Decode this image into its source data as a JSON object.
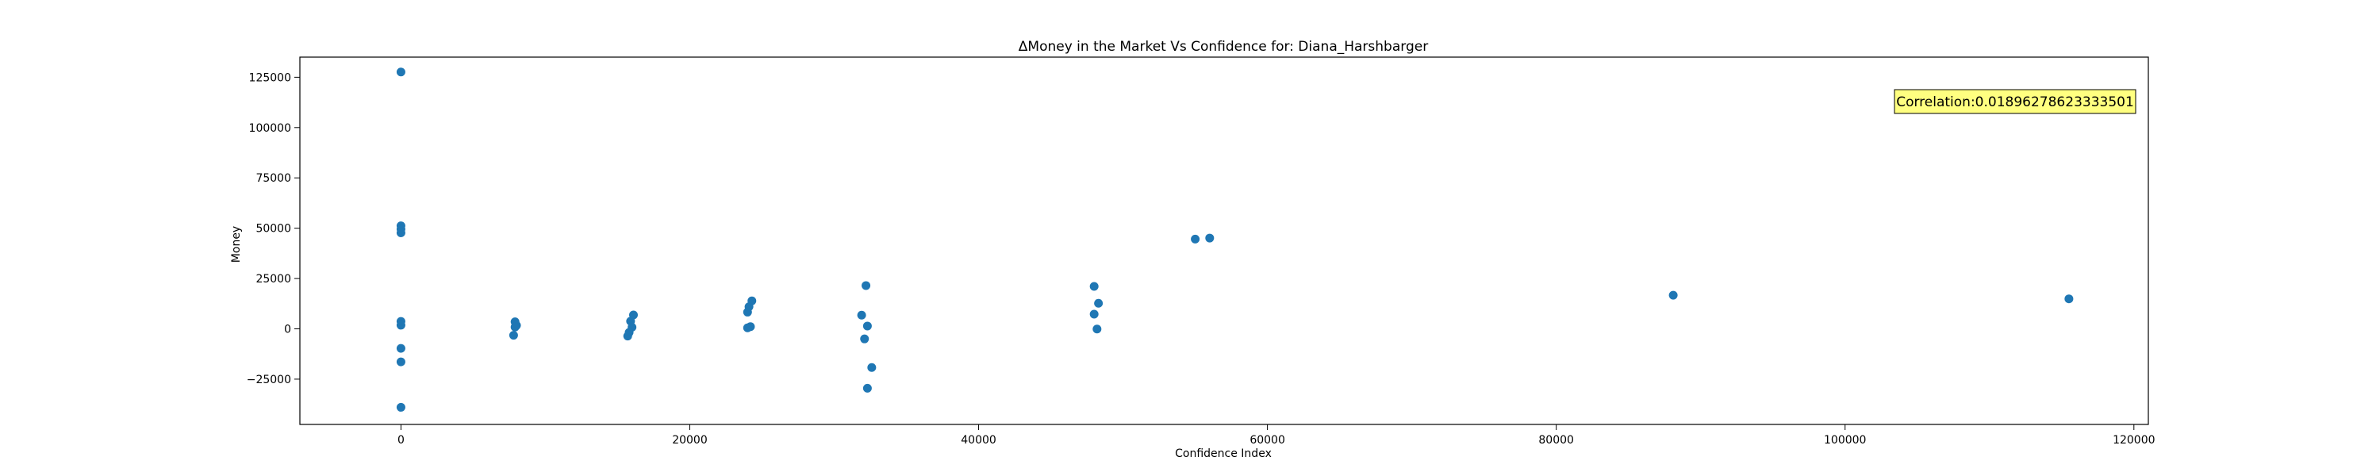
{
  "chart_data": {
    "type": "scatter",
    "title": "ΔMoney in the Market Vs Confidence for: Diana_Harshbarger",
    "xlabel": "Confidence Index",
    "ylabel": "Money",
    "xlim": [
      -7000,
      121000
    ],
    "ylim": [
      -47500,
      135000
    ],
    "xticks": [
      0,
      20000,
      40000,
      60000,
      80000,
      100000,
      120000
    ],
    "yticks": [
      -25000,
      0,
      25000,
      50000,
      75000,
      100000,
      125000
    ],
    "grid": false,
    "marker_color": "#1f77b4",
    "annotation": {
      "text": "Correlation:0.01896278623333501",
      "background": "#ffff80"
    },
    "points": [
      {
        "x": 0,
        "y": 127600
      },
      {
        "x": 0,
        "y": 51200
      },
      {
        "x": 0,
        "y": 49500
      },
      {
        "x": 0,
        "y": 47700
      },
      {
        "x": 0,
        "y": 3700
      },
      {
        "x": 0,
        "y": 1800
      },
      {
        "x": 0,
        "y": -9700
      },
      {
        "x": 0,
        "y": -16400
      },
      {
        "x": 0,
        "y": -39000
      },
      {
        "x": 7900,
        "y": 3500
      },
      {
        "x": 8000,
        "y": 1700
      },
      {
        "x": 7900,
        "y": 900
      },
      {
        "x": 7800,
        "y": -3200
      },
      {
        "x": 16100,
        "y": 6900
      },
      {
        "x": 15900,
        "y": 3800
      },
      {
        "x": 16000,
        "y": 800
      },
      {
        "x": 15800,
        "y": -1800
      },
      {
        "x": 15700,
        "y": -3600
      },
      {
        "x": 24300,
        "y": 13900
      },
      {
        "x": 24100,
        "y": 11000
      },
      {
        "x": 24000,
        "y": 8300
      },
      {
        "x": 24200,
        "y": 1100
      },
      {
        "x": 24000,
        "y": 500
      },
      {
        "x": 32200,
        "y": 21500
      },
      {
        "x": 31900,
        "y": 6800
      },
      {
        "x": 32300,
        "y": 1400
      },
      {
        "x": 32100,
        "y": -5000
      },
      {
        "x": 32600,
        "y": -19200
      },
      {
        "x": 32300,
        "y": -29500
      },
      {
        "x": 48000,
        "y": 21100
      },
      {
        "x": 48300,
        "y": 12700
      },
      {
        "x": 48000,
        "y": 7300
      },
      {
        "x": 48200,
        "y": -100
      },
      {
        "x": 55000,
        "y": 44600
      },
      {
        "x": 56000,
        "y": 45100
      },
      {
        "x": 88100,
        "y": 16700
      },
      {
        "x": 115500,
        "y": 14900
      }
    ]
  }
}
